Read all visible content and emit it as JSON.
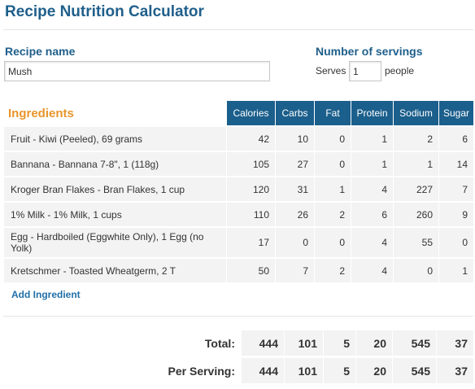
{
  "page": {
    "title": "Recipe Nutrition Calculator"
  },
  "recipe": {
    "label": "Recipe name",
    "value": "Mush"
  },
  "servings": {
    "label": "Number of servings",
    "prefix": "Serves",
    "value": "1",
    "suffix": "people"
  },
  "ingredients": {
    "title": "Ingredients",
    "columns": [
      "Calories",
      "Carbs",
      "Fat",
      "Protein",
      "Sodium",
      "Sugar"
    ],
    "rows": [
      {
        "name": "Fruit - Kiwi (Peeled), 69 grams",
        "values": [
          "42",
          "10",
          "0",
          "1",
          "2",
          "6"
        ]
      },
      {
        "name": "Bannana - Bannana 7-8\", 1 (118g)",
        "values": [
          "105",
          "27",
          "0",
          "1",
          "1",
          "14"
        ]
      },
      {
        "name": "Kroger Bran Flakes - Bran Flakes, 1 cup",
        "values": [
          "120",
          "31",
          "1",
          "4",
          "227",
          "7"
        ]
      },
      {
        "name": "1% Milk - 1% Milk, 1 cups",
        "values": [
          "110",
          "26",
          "2",
          "6",
          "260",
          "9"
        ]
      },
      {
        "name": "Egg - Hardboiled (Eggwhite Only), 1 Egg (no Yolk)",
        "values": [
          "17",
          "0",
          "0",
          "4",
          "55",
          "0"
        ]
      },
      {
        "name": "Kretschmer - Toasted Wheatgerm, 2 T",
        "values": [
          "50",
          "7",
          "2",
          "4",
          "0",
          "1"
        ]
      }
    ],
    "add_label": "Add Ingredient"
  },
  "totals": {
    "total_label": "Total:",
    "total_values": [
      "444",
      "101",
      "5",
      "20",
      "545",
      "37"
    ],
    "per_serving_label": "Per Serving:",
    "per_serving_values": [
      "444",
      "101",
      "5",
      "20",
      "545",
      "37"
    ]
  }
}
